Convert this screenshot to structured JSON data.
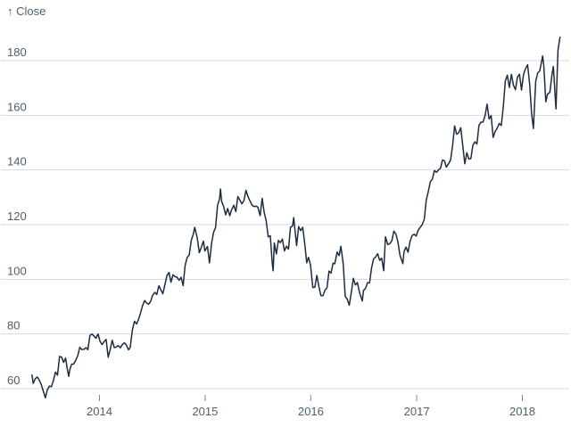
{
  "figure": {
    "background": "#ffffff",
    "line_color": "#1e2c42",
    "grid_color": "#d6dae0",
    "tick_mark_color": "#7b8a96",
    "tick_label_color": "#4e5d6e"
  },
  "chart_data": {
    "type": "line",
    "title": "",
    "ylabel": "↑ Close",
    "xlabel": "",
    "grid": true,
    "legend": "none",
    "y_ticks": [
      60,
      80,
      100,
      120,
      140,
      160,
      180
    ],
    "x_ticks": [
      "2014",
      "2015",
      "2016",
      "2017",
      "2018"
    ],
    "xlim": [
      "2013-05-13",
      "2018-05-11"
    ],
    "ylim": [
      55,
      192
    ],
    "series_name": "Close",
    "points": [
      [
        "2013-05-13",
        64.96
      ],
      [
        "2013-05-17",
        61.89
      ],
      [
        "2013-05-24",
        63.59
      ],
      [
        "2013-05-31",
        64.25
      ],
      [
        "2013-06-07",
        63.12
      ],
      [
        "2013-06-14",
        61.44
      ],
      [
        "2013-06-21",
        59.07
      ],
      [
        "2013-06-28",
        56.65
      ],
      [
        "2013-07-05",
        59.63
      ],
      [
        "2013-07-12",
        60.93
      ],
      [
        "2013-07-19",
        60.71
      ],
      [
        "2013-07-26",
        62.99
      ],
      [
        "2013-08-02",
        66.08
      ],
      [
        "2013-08-09",
        64.92
      ],
      [
        "2013-08-16",
        71.76
      ],
      [
        "2013-08-23",
        71.57
      ],
      [
        "2013-08-30",
        69.6
      ],
      [
        "2013-09-06",
        71.17
      ],
      [
        "2013-09-13",
        66.41
      ],
      [
        "2013-09-17",
        64.5
      ],
      [
        "2013-09-20",
        66.77
      ],
      [
        "2013-09-27",
        68.96
      ],
      [
        "2013-10-04",
        69.0
      ],
      [
        "2013-10-11",
        70.4
      ],
      [
        "2013-10-18",
        72.07
      ],
      [
        "2013-10-25",
        75.14
      ],
      [
        "2013-11-01",
        74.29
      ],
      [
        "2013-11-08",
        74.37
      ],
      [
        "2013-11-15",
        74.99
      ],
      [
        "2013-11-22",
        74.26
      ],
      [
        "2013-11-29",
        79.44
      ],
      [
        "2013-12-06",
        80.0
      ],
      [
        "2013-12-13",
        79.2
      ],
      [
        "2013-12-20",
        78.43
      ],
      [
        "2013-12-27",
        80.01
      ],
      [
        "2014-01-03",
        77.28
      ],
      [
        "2014-01-10",
        76.13
      ],
      [
        "2014-01-17",
        77.24
      ],
      [
        "2014-01-24",
        78.01
      ],
      [
        "2014-01-31",
        71.51
      ],
      [
        "2014-02-07",
        74.24
      ],
      [
        "2014-02-14",
        77.71
      ],
      [
        "2014-02-21",
        75.04
      ],
      [
        "2014-02-28",
        75.18
      ],
      [
        "2014-03-07",
        75.77
      ],
      [
        "2014-03-14",
        74.96
      ],
      [
        "2014-03-21",
        76.12
      ],
      [
        "2014-03-28",
        76.78
      ],
      [
        "2014-04-04",
        75.97
      ],
      [
        "2014-04-11",
        74.23
      ],
      [
        "2014-04-17",
        75.0
      ],
      [
        "2014-04-25",
        81.71
      ],
      [
        "2014-05-02",
        84.65
      ],
      [
        "2014-05-09",
        83.65
      ],
      [
        "2014-05-16",
        85.36
      ],
      [
        "2014-05-23",
        87.73
      ],
      [
        "2014-05-30",
        90.43
      ],
      [
        "2014-06-06",
        92.22
      ],
      [
        "2014-06-13",
        91.28
      ],
      [
        "2014-06-20",
        90.91
      ],
      [
        "2014-06-27",
        91.98
      ],
      [
        "2014-07-03",
        94.03
      ],
      [
        "2014-07-11",
        95.22
      ],
      [
        "2014-07-18",
        94.43
      ],
      [
        "2014-07-25",
        97.67
      ],
      [
        "2014-08-01",
        96.13
      ],
      [
        "2014-08-08",
        94.74
      ],
      [
        "2014-08-15",
        97.98
      ],
      [
        "2014-08-22",
        101.32
      ],
      [
        "2014-08-29",
        102.5
      ],
      [
        "2014-09-05",
        98.97
      ],
      [
        "2014-09-12",
        101.66
      ],
      [
        "2014-09-19",
        100.96
      ],
      [
        "2014-09-26",
        100.75
      ],
      [
        "2014-10-03",
        99.62
      ],
      [
        "2014-10-10",
        100.73
      ],
      [
        "2014-10-17",
        97.67
      ],
      [
        "2014-10-24",
        105.22
      ],
      [
        "2014-10-31",
        108.0
      ],
      [
        "2014-11-07",
        108.86
      ],
      [
        "2014-11-14",
        114.18
      ],
      [
        "2014-11-21",
        116.47
      ],
      [
        "2014-11-26",
        119.0
      ],
      [
        "2014-12-05",
        115.0
      ],
      [
        "2014-12-12",
        109.73
      ],
      [
        "2014-12-19",
        111.78
      ],
      [
        "2014-12-26",
        113.99
      ],
      [
        "2014-12-31",
        110.38
      ],
      [
        "2015-01-09",
        112.01
      ],
      [
        "2015-01-16",
        105.99
      ],
      [
        "2015-01-23",
        112.98
      ],
      [
        "2015-01-30",
        117.16
      ],
      [
        "2015-02-06",
        118.93
      ],
      [
        "2015-02-13",
        127.08
      ],
      [
        "2015-02-20",
        129.5
      ],
      [
        "2015-02-23",
        133.0
      ],
      [
        "2015-02-27",
        128.46
      ],
      [
        "2015-03-06",
        126.6
      ],
      [
        "2015-03-13",
        123.59
      ],
      [
        "2015-03-20",
        125.9
      ],
      [
        "2015-03-27",
        123.25
      ],
      [
        "2015-04-02",
        125.32
      ],
      [
        "2015-04-10",
        127.1
      ],
      [
        "2015-04-17",
        124.75
      ],
      [
        "2015-04-24",
        130.28
      ],
      [
        "2015-05-01",
        128.95
      ],
      [
        "2015-05-08",
        127.62
      ],
      [
        "2015-05-15",
        128.77
      ],
      [
        "2015-05-22",
        132.54
      ],
      [
        "2015-05-29",
        130.28
      ],
      [
        "2015-06-05",
        128.65
      ],
      [
        "2015-06-12",
        127.17
      ],
      [
        "2015-06-19",
        126.6
      ],
      [
        "2015-06-26",
        126.75
      ],
      [
        "2015-07-02",
        126.44
      ],
      [
        "2015-07-10",
        123.28
      ],
      [
        "2015-07-17",
        129.62
      ],
      [
        "2015-07-24",
        124.5
      ],
      [
        "2015-07-31",
        121.3
      ],
      [
        "2015-08-07",
        115.52
      ],
      [
        "2015-08-14",
        115.96
      ],
      [
        "2015-08-21",
        105.76
      ],
      [
        "2015-08-24",
        103.12
      ],
      [
        "2015-08-28",
        113.29
      ],
      [
        "2015-09-04",
        109.27
      ],
      [
        "2015-09-11",
        114.21
      ],
      [
        "2015-09-18",
        113.45
      ],
      [
        "2015-09-25",
        114.71
      ],
      [
        "2015-10-02",
        110.38
      ],
      [
        "2015-10-09",
        112.12
      ],
      [
        "2015-10-16",
        111.04
      ],
      [
        "2015-10-23",
        119.08
      ],
      [
        "2015-10-30",
        119.5
      ],
      [
        "2015-11-03",
        122.57
      ],
      [
        "2015-11-13",
        112.34
      ],
      [
        "2015-11-20",
        119.3
      ],
      [
        "2015-11-27",
        117.81
      ],
      [
        "2015-12-04",
        119.03
      ],
      [
        "2015-12-11",
        113.18
      ],
      [
        "2015-12-18",
        106.03
      ],
      [
        "2015-12-24",
        108.03
      ],
      [
        "2015-12-31",
        105.26
      ],
      [
        "2016-01-08",
        96.96
      ],
      [
        "2016-01-15",
        97.13
      ],
      [
        "2016-01-22",
        101.42
      ],
      [
        "2016-01-29",
        97.34
      ],
      [
        "2016-02-05",
        94.02
      ],
      [
        "2016-02-12",
        93.99
      ],
      [
        "2016-02-19",
        96.04
      ],
      [
        "2016-02-26",
        96.91
      ],
      [
        "2016-03-04",
        103.01
      ],
      [
        "2016-03-11",
        102.26
      ],
      [
        "2016-03-18",
        105.92
      ],
      [
        "2016-03-24",
        105.67
      ],
      [
        "2016-04-01",
        109.99
      ],
      [
        "2016-04-08",
        108.66
      ],
      [
        "2016-04-14",
        112.1
      ],
      [
        "2016-04-22",
        105.68
      ],
      [
        "2016-04-29",
        93.74
      ],
      [
        "2016-05-06",
        92.72
      ],
      [
        "2016-05-13",
        90.52
      ],
      [
        "2016-05-20",
        95.22
      ],
      [
        "2016-05-27",
        100.35
      ],
      [
        "2016-06-03",
        97.92
      ],
      [
        "2016-06-10",
        98.83
      ],
      [
        "2016-06-17",
        95.33
      ],
      [
        "2016-06-27",
        92.04
      ],
      [
        "2016-07-01",
        95.89
      ],
      [
        "2016-07-08",
        96.68
      ],
      [
        "2016-07-15",
        98.78
      ],
      [
        "2016-07-22",
        98.66
      ],
      [
        "2016-07-29",
        104.21
      ],
      [
        "2016-08-05",
        107.48
      ],
      [
        "2016-08-12",
        108.18
      ],
      [
        "2016-08-19",
        109.36
      ],
      [
        "2016-08-26",
        106.94
      ],
      [
        "2016-09-02",
        107.73
      ],
      [
        "2016-09-09",
        103.13
      ],
      [
        "2016-09-15",
        115.57
      ],
      [
        "2016-09-23",
        112.71
      ],
      [
        "2016-09-30",
        113.05
      ],
      [
        "2016-10-07",
        114.06
      ],
      [
        "2016-10-14",
        117.63
      ],
      [
        "2016-10-21",
        116.6
      ],
      [
        "2016-10-28",
        113.72
      ],
      [
        "2016-11-04",
        108.84
      ],
      [
        "2016-11-14",
        105.71
      ],
      [
        "2016-11-18",
        110.06
      ],
      [
        "2016-11-25",
        111.79
      ],
      [
        "2016-12-02",
        109.9
      ],
      [
        "2016-12-09",
        113.95
      ],
      [
        "2016-12-16",
        115.97
      ],
      [
        "2016-12-23",
        116.52
      ],
      [
        "2016-12-30",
        115.82
      ],
      [
        "2017-01-06",
        117.91
      ],
      [
        "2017-01-13",
        119.04
      ],
      [
        "2017-01-20",
        120.0
      ],
      [
        "2017-01-27",
        121.95
      ],
      [
        "2017-02-03",
        129.08
      ],
      [
        "2017-02-10",
        132.12
      ],
      [
        "2017-02-17",
        135.72
      ],
      [
        "2017-02-24",
        136.66
      ],
      [
        "2017-03-03",
        139.78
      ],
      [
        "2017-03-10",
        139.14
      ],
      [
        "2017-03-17",
        139.99
      ],
      [
        "2017-03-24",
        140.64
      ],
      [
        "2017-03-31",
        143.66
      ],
      [
        "2017-04-07",
        143.34
      ],
      [
        "2017-04-13",
        141.05
      ],
      [
        "2017-04-21",
        142.27
      ],
      [
        "2017-04-28",
        143.65
      ],
      [
        "2017-05-05",
        148.96
      ],
      [
        "2017-05-12",
        156.1
      ],
      [
        "2017-05-19",
        153.06
      ],
      [
        "2017-05-26",
        153.61
      ],
      [
        "2017-06-02",
        155.45
      ],
      [
        "2017-06-09",
        148.98
      ],
      [
        "2017-06-16",
        142.27
      ],
      [
        "2017-06-23",
        146.28
      ],
      [
        "2017-06-30",
        144.02
      ],
      [
        "2017-07-07",
        144.18
      ],
      [
        "2017-07-14",
        149.04
      ],
      [
        "2017-07-21",
        150.27
      ],
      [
        "2017-07-28",
        149.5
      ],
      [
        "2017-08-04",
        156.39
      ],
      [
        "2017-08-11",
        157.48
      ],
      [
        "2017-08-18",
        157.5
      ],
      [
        "2017-08-25",
        159.86
      ],
      [
        "2017-09-01",
        164.05
      ],
      [
        "2017-09-08",
        158.63
      ],
      [
        "2017-09-15",
        159.88
      ],
      [
        "2017-09-22",
        151.89
      ],
      [
        "2017-09-29",
        154.12
      ],
      [
        "2017-10-06",
        155.3
      ],
      [
        "2017-10-13",
        156.99
      ],
      [
        "2017-10-20",
        156.25
      ],
      [
        "2017-10-27",
        163.05
      ],
      [
        "2017-11-03",
        172.5
      ],
      [
        "2017-11-10",
        174.67
      ],
      [
        "2017-11-17",
        170.15
      ],
      [
        "2017-11-24",
        174.97
      ],
      [
        "2017-12-01",
        171.05
      ],
      [
        "2017-12-08",
        169.37
      ],
      [
        "2017-12-15",
        173.97
      ],
      [
        "2017-12-22",
        175.01
      ],
      [
        "2017-12-29",
        169.23
      ],
      [
        "2018-01-05",
        175.0
      ],
      [
        "2018-01-12",
        177.09
      ],
      [
        "2018-01-19",
        178.46
      ],
      [
        "2018-01-26",
        171.51
      ],
      [
        "2018-02-02",
        160.5
      ],
      [
        "2018-02-08",
        155.15
      ],
      [
        "2018-02-16",
        172.43
      ],
      [
        "2018-02-23",
        175.5
      ],
      [
        "2018-03-02",
        176.21
      ],
      [
        "2018-03-12",
        181.72
      ],
      [
        "2018-03-16",
        178.02
      ],
      [
        "2018-03-23",
        164.94
      ],
      [
        "2018-03-29",
        167.78
      ],
      [
        "2018-04-06",
        168.38
      ],
      [
        "2018-04-13",
        174.73
      ],
      [
        "2018-04-18",
        177.84
      ],
      [
        "2018-04-27",
        162.32
      ],
      [
        "2018-05-04",
        183.83
      ],
      [
        "2018-05-11",
        188.59
      ]
    ]
  }
}
